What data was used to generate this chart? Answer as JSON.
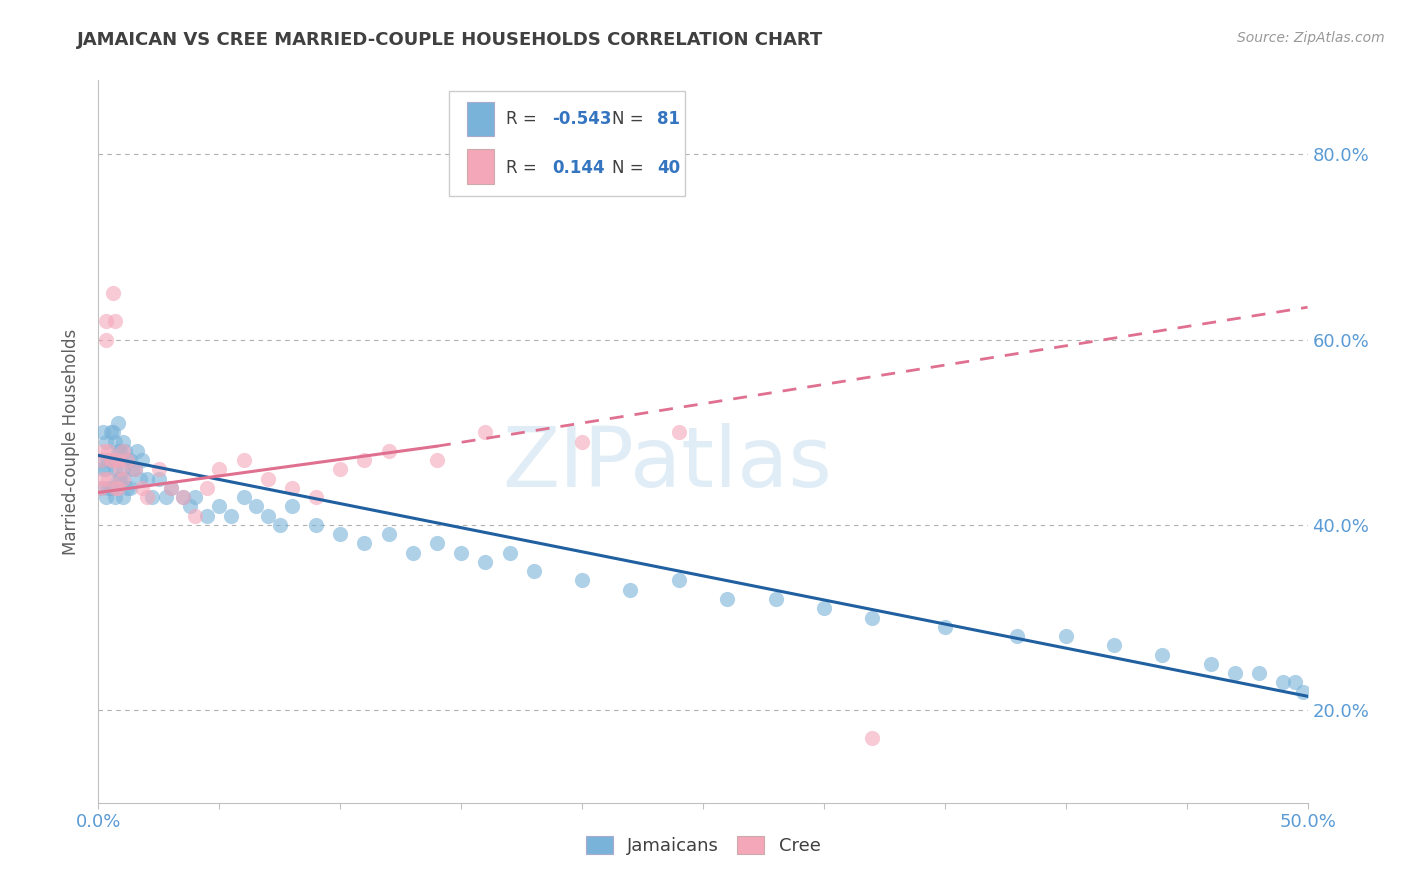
{
  "title": "JAMAICAN VS CREE MARRIED-COUPLE HOUSEHOLDS CORRELATION CHART",
  "source_text": "Source: ZipAtlas.com",
  "ylabel": "Married-couple Households",
  "xlim": [
    0.0,
    0.5
  ],
  "ylim": [
    0.1,
    0.88
  ],
  "xtick_positions": [
    0.0,
    0.05,
    0.1,
    0.15,
    0.2,
    0.25,
    0.3,
    0.35,
    0.4,
    0.45,
    0.5
  ],
  "xticklabels": [
    "0.0%",
    "",
    "",
    "",
    "",
    "",
    "",
    "",
    "",
    "",
    "50.0%"
  ],
  "ytick_positions": [
    0.2,
    0.4,
    0.6,
    0.8
  ],
  "yticklabels": [
    "20.0%",
    "40.0%",
    "60.0%",
    "80.0%"
  ],
  "blue_color": "#7ab3d9",
  "pink_color": "#f4a7b9",
  "blue_line_color": "#2060a0",
  "pink_line_color": "#e07090",
  "axis_color": "#5b9bd5",
  "grid_color": "#b0b0b0",
  "title_color": "#404040",
  "watermark": "ZIPatlas",
  "legend_r_blue": "-0.543",
  "legend_n_blue": "81",
  "legend_r_pink": "0.144",
  "legend_n_pink": "40",
  "blue_trend": [
    0.0,
    0.475,
    0.5,
    0.215
  ],
  "pink_solid_trend": [
    0.0,
    0.435,
    0.14,
    0.485
  ],
  "pink_dashed_trend": [
    0.14,
    0.485,
    0.5,
    0.635
  ],
  "jamaican_x": [
    0.001,
    0.001,
    0.002,
    0.002,
    0.003,
    0.003,
    0.003,
    0.004,
    0.004,
    0.005,
    0.005,
    0.005,
    0.006,
    0.006,
    0.006,
    0.007,
    0.007,
    0.007,
    0.008,
    0.008,
    0.008,
    0.009,
    0.009,
    0.01,
    0.01,
    0.01,
    0.011,
    0.011,
    0.012,
    0.012,
    0.013,
    0.013,
    0.014,
    0.015,
    0.016,
    0.017,
    0.018,
    0.02,
    0.022,
    0.025,
    0.028,
    0.03,
    0.035,
    0.038,
    0.04,
    0.045,
    0.05,
    0.055,
    0.06,
    0.065,
    0.07,
    0.075,
    0.08,
    0.09,
    0.1,
    0.11,
    0.12,
    0.13,
    0.14,
    0.15,
    0.16,
    0.17,
    0.18,
    0.2,
    0.22,
    0.24,
    0.26,
    0.28,
    0.3,
    0.32,
    0.35,
    0.38,
    0.4,
    0.42,
    0.44,
    0.46,
    0.47,
    0.48,
    0.49,
    0.495,
    0.498
  ],
  "jamaican_y": [
    0.47,
    0.44,
    0.5,
    0.46,
    0.49,
    0.46,
    0.43,
    0.47,
    0.44,
    0.5,
    0.47,
    0.44,
    0.5,
    0.47,
    0.44,
    0.49,
    0.46,
    0.43,
    0.51,
    0.48,
    0.45,
    0.48,
    0.45,
    0.49,
    0.46,
    0.43,
    0.48,
    0.45,
    0.47,
    0.44,
    0.47,
    0.44,
    0.46,
    0.46,
    0.48,
    0.45,
    0.47,
    0.45,
    0.43,
    0.45,
    0.43,
    0.44,
    0.43,
    0.42,
    0.43,
    0.41,
    0.42,
    0.41,
    0.43,
    0.42,
    0.41,
    0.4,
    0.42,
    0.4,
    0.39,
    0.38,
    0.39,
    0.37,
    0.38,
    0.37,
    0.36,
    0.37,
    0.35,
    0.34,
    0.33,
    0.34,
    0.32,
    0.32,
    0.31,
    0.3,
    0.29,
    0.28,
    0.28,
    0.27,
    0.26,
    0.25,
    0.24,
    0.24,
    0.23,
    0.23,
    0.22
  ],
  "cree_x": [
    0.001,
    0.001,
    0.002,
    0.002,
    0.003,
    0.003,
    0.004,
    0.004,
    0.005,
    0.006,
    0.006,
    0.007,
    0.007,
    0.008,
    0.008,
    0.009,
    0.01,
    0.01,
    0.012,
    0.015,
    0.018,
    0.02,
    0.025,
    0.03,
    0.035,
    0.04,
    0.045,
    0.05,
    0.06,
    0.07,
    0.08,
    0.09,
    0.1,
    0.11,
    0.12,
    0.14,
    0.16,
    0.2,
    0.24,
    0.32
  ],
  "cree_y": [
    0.47,
    0.44,
    0.48,
    0.45,
    0.62,
    0.6,
    0.48,
    0.45,
    0.47,
    0.65,
    0.47,
    0.62,
    0.44,
    0.47,
    0.44,
    0.46,
    0.48,
    0.45,
    0.47,
    0.46,
    0.44,
    0.43,
    0.46,
    0.44,
    0.43,
    0.41,
    0.44,
    0.46,
    0.47,
    0.45,
    0.44,
    0.43,
    0.46,
    0.47,
    0.48,
    0.47,
    0.5,
    0.49,
    0.5,
    0.17
  ]
}
